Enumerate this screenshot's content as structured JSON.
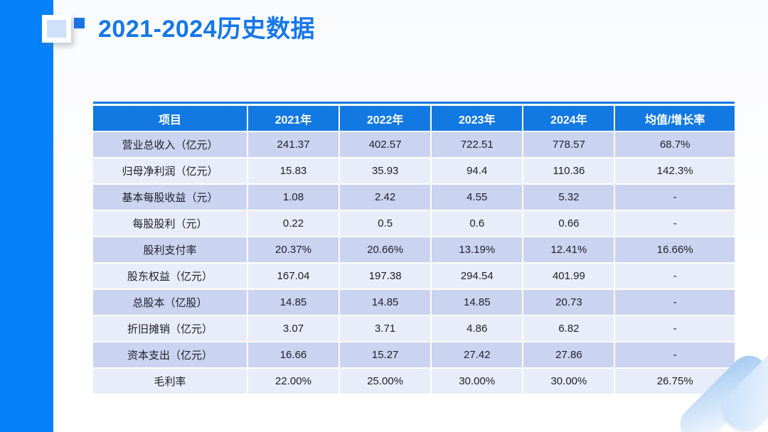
{
  "page": {
    "title": "2021-2024历史数据"
  },
  "colors": {
    "accent_bar": "#0681fa",
    "title_text": "#1577e8",
    "table_header_bg": "#1278e2",
    "table_header_text": "#ffffff",
    "row_dark_bg": "#cad3f0",
    "row_light_bg": "#e9edf9",
    "cell_text": "#202028"
  },
  "table": {
    "columns": [
      "项目",
      "2021年",
      "2022年",
      "2023年",
      "2024年",
      "均值/增长率"
    ],
    "rows": [
      {
        "label": "营业总收入（亿元）",
        "values": [
          "241.37",
          "402.57",
          "722.51",
          "778.57",
          "68.7%"
        ]
      },
      {
        "label": "归母净利润（亿元）",
        "values": [
          "15.83",
          "35.93",
          "94.4",
          "110.36",
          "142.3%"
        ]
      },
      {
        "label": "基本每股收益（元）",
        "values": [
          "1.08",
          "2.42",
          "4.55",
          "5.32",
          "-"
        ]
      },
      {
        "label": "每股股利（元）",
        "values": [
          "0.22",
          "0.5",
          "0.6",
          "0.66",
          "-"
        ]
      },
      {
        "label": "股利支付率",
        "values": [
          "20.37%",
          "20.66%",
          "13.19%",
          "12.41%",
          "16.66%"
        ]
      },
      {
        "label": "股东权益（亿元）",
        "values": [
          "167.04",
          "197.38",
          "294.54",
          "401.99",
          "-"
        ]
      },
      {
        "label": "总股本（亿股）",
        "values": [
          "14.85",
          "14.85",
          "14.85",
          "20.73",
          "-"
        ]
      },
      {
        "label": "折旧摊销（亿元）",
        "values": [
          "3.07",
          "3.71",
          "4.86",
          "6.82",
          "-"
        ]
      },
      {
        "label": "资本支出（亿元）",
        "values": [
          "16.66",
          "15.27",
          "27.42",
          "27.86",
          "-"
        ]
      },
      {
        "label": "毛利率",
        "values": [
          "22.00%",
          "25.00%",
          "30.00%",
          "30.00%",
          "26.75%"
        ]
      }
    ]
  }
}
